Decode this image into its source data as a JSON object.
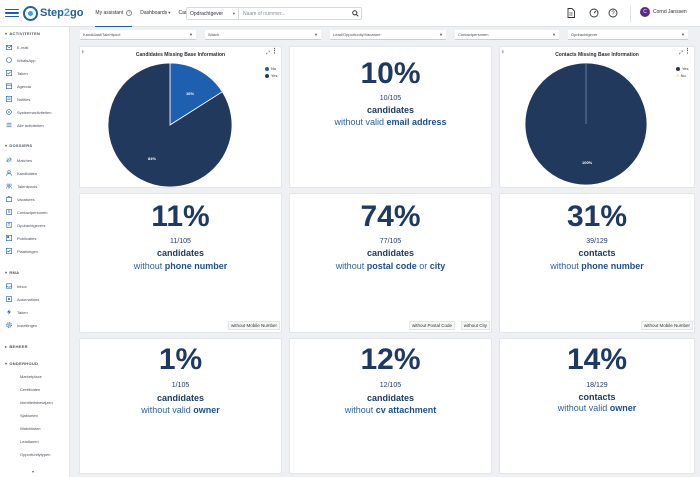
{
  "app": {
    "logo_pre": "Step",
    "logo_slash": "2",
    "logo_post": "go",
    "tabs": {
      "my_assistant": "My assistant",
      "my_assistant_badge": "?",
      "dashboards": "Dashboards",
      "careers_ai": "Careers AI"
    },
    "search": {
      "type_label": "Opdrachtgever",
      "placeholder": "Naam of nummer..."
    },
    "user_initial": "C",
    "user_name": "Cornd Janssen"
  },
  "sidebar": {
    "sections": {
      "activiteiten": "ACTIVITEITEN",
      "dossiers": "DOSSIERS",
      "rma": "RMA",
      "beheer": "BEHEER",
      "onderhoud": "ONDERHOUD"
    },
    "activiteiten": [
      "E-mail",
      "WhatsApp",
      "Taken",
      "Agenda",
      "Notities",
      "Systeemactiviteiten",
      "Alle activiteiten"
    ],
    "dossiers": [
      "Matches",
      "Kandidaten",
      "Talentpools",
      "Vacatures",
      "Contactpersonen",
      "Opdrachtgevers",
      "Publicaties",
      "Plaatsingen"
    ],
    "rma": [
      "Inbox",
      "Automations",
      "Taken",
      "Instellingen"
    ],
    "onderhoud": [
      "Marketplace",
      "Certificaten",
      "Identiteitsbewijzen",
      "Sjablonen",
      "Watchlisten",
      "Leadlanen",
      "Opportunitytypen"
    ]
  },
  "filters": [
    "Kandidaat/Talentpool",
    "Watch",
    "Lead/Opportunity/Vacature",
    "Contactpersonen",
    "Opdrachtgever"
  ],
  "cards": {
    "candidates_pie": {
      "title": "Candidates Missing Base Information",
      "legend": [
        "No",
        "Yes"
      ],
      "label_small": "16%",
      "label_large": "84%"
    },
    "email": {
      "pct": "10%",
      "count": "10/105",
      "subject": "candidates",
      "pre": "without valid",
      "hl": "email address",
      "post": ""
    },
    "contacts_pie": {
      "title": "Contacts Missing Base Information",
      "legend": [
        "Yes",
        "No"
      ],
      "label": "100%"
    },
    "phone": {
      "pct": "11%",
      "count": "11/105",
      "subject": "candidates",
      "pre": "without",
      "hl": "phone number",
      "chip": "without Mobile Number"
    },
    "postal": {
      "pct": "74%",
      "count": "77/105",
      "subject": "candidates",
      "pre": "without",
      "hl": "postal code",
      "mid": "or",
      "hl2": "city",
      "chip1": "without Postal Code",
      "chip2": "without City"
    },
    "contacts_phone": {
      "pct": "31%",
      "count": "39/129",
      "subject": "contacts",
      "pre": "without",
      "hl": "phone number",
      "chip": "without Mobile Number"
    },
    "owner": {
      "pct": "1%",
      "count": "1/105",
      "subject": "candidates",
      "pre": "without valid",
      "hl": "owner"
    },
    "cv": {
      "pct": "12%",
      "count": "12/105",
      "subject": "candidates",
      "pre": "without",
      "hl": "cv attachment"
    },
    "contacts_owner": {
      "pct": "14%",
      "count": "18/129",
      "subject": "contacts",
      "pre": "without valid",
      "hl": "owner"
    }
  },
  "chart_data": [
    {
      "type": "pie",
      "title": "Candidates Missing Base Information",
      "categories": [
        "No",
        "Yes"
      ],
      "values": [
        16,
        84
      ],
      "colors": [
        "#1f5fb0",
        "#22395e"
      ]
    },
    {
      "type": "pie",
      "title": "Contacts Missing Base Information",
      "categories": [
        "Yes",
        "No"
      ],
      "values": [
        100,
        0
      ],
      "colors": [
        "#22395e",
        "#1f5fb0"
      ]
    }
  ],
  "colors": {
    "accent": "#1d5fa8",
    "kpi": "#1e3a63",
    "pie_dark": "#22395e",
    "pie_blue": "#1f5fb0"
  }
}
